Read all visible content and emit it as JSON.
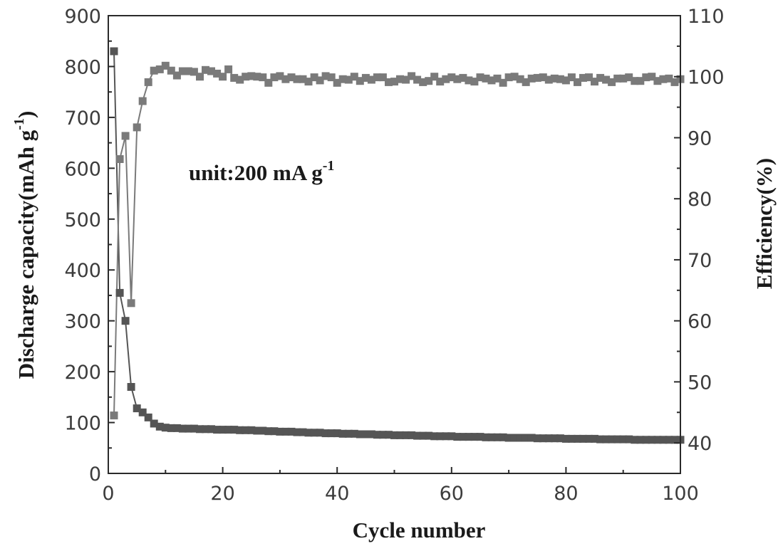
{
  "chart_data": {
    "type": "scatter",
    "annotation": {
      "text": "unit:200 mA g",
      "superscript": "-1"
    },
    "xlabel": "Cycle number",
    "ylabel_left": {
      "text": "Discharge capacity(mAh g",
      "superscript": "-1",
      "close": ")"
    },
    "ylabel_right": "Efficiency(%)",
    "xlim": [
      0,
      100
    ],
    "ylim_left": [
      0,
      900
    ],
    "ylim_right": [
      35,
      110
    ],
    "x_ticks": [
      0,
      20,
      40,
      60,
      80,
      100
    ],
    "y_left_ticks": [
      0,
      100,
      200,
      300,
      400,
      500,
      600,
      700,
      800,
      900
    ],
    "y_right_ticks": [
      40,
      50,
      60,
      70,
      80,
      90,
      100,
      110
    ],
    "grid": false,
    "colors": {
      "capacity": "#555555",
      "efficiency": "#7a7a7a",
      "axis": "#2a2a2a"
    },
    "series": [
      {
        "axis": "left",
        "marker": "square",
        "x": [
          1,
          2,
          3,
          4,
          5,
          6,
          7,
          8,
          9,
          10,
          11,
          12,
          13,
          14,
          15,
          16,
          17,
          18,
          19,
          20,
          21,
          22,
          23,
          24,
          25,
          26,
          27,
          28,
          29,
          30,
          31,
          32,
          33,
          34,
          35,
          36,
          37,
          38,
          39,
          40,
          41,
          42,
          43,
          44,
          45,
          46,
          47,
          48,
          49,
          50,
          51,
          52,
          53,
          54,
          55,
          56,
          57,
          58,
          59,
          60,
          61,
          62,
          63,
          64,
          65,
          66,
          67,
          68,
          69,
          70,
          71,
          72,
          73,
          74,
          75,
          76,
          77,
          78,
          79,
          80,
          81,
          82,
          83,
          84,
          85,
          86,
          87,
          88,
          89,
          90,
          91,
          92,
          93,
          94,
          95,
          96,
          97,
          98,
          99,
          100
        ],
        "values": [
          830,
          355,
          300,
          170,
          128,
          120,
          110,
          98,
          92,
          90,
          89,
          89,
          88,
          88,
          88,
          87,
          87,
          87,
          86,
          86,
          86,
          86,
          85,
          85,
          85,
          84,
          84,
          83,
          83,
          82,
          82,
          82,
          81,
          81,
          80,
          80,
          80,
          79,
          79,
          79,
          78,
          78,
          78,
          77,
          77,
          77,
          76,
          76,
          76,
          75,
          75,
          75,
          75,
          74,
          74,
          74,
          73,
          73,
          73,
          73,
          72,
          72,
          72,
          72,
          72,
          71,
          71,
          71,
          71,
          70,
          70,
          70,
          70,
          70,
          69,
          69,
          69,
          69,
          69,
          68,
          68,
          68,
          68,
          68,
          68,
          67,
          67,
          67,
          67,
          67,
          67,
          66,
          66,
          66,
          66,
          66,
          66,
          66,
          66,
          66
        ]
      },
      {
        "axis": "right",
        "marker": "square",
        "x": [
          1,
          2,
          3,
          4,
          5,
          6,
          7,
          8,
          9,
          10,
          11,
          12,
          13,
          14,
          15,
          16,
          17,
          18,
          19,
          20,
          21,
          22,
          23,
          24,
          25,
          26,
          27,
          28,
          29,
          30,
          31,
          32,
          33,
          34,
          35,
          36,
          37,
          38,
          39,
          40,
          41,
          42,
          43,
          44,
          45,
          46,
          47,
          48,
          49,
          50,
          51,
          52,
          53,
          54,
          55,
          56,
          57,
          58,
          59,
          60,
          61,
          62,
          63,
          64,
          65,
          66,
          67,
          68,
          69,
          70,
          71,
          72,
          73,
          74,
          75,
          76,
          77,
          78,
          79,
          80,
          81,
          82,
          83,
          84,
          85,
          86,
          87,
          88,
          89,
          90,
          91,
          92,
          93,
          94,
          95,
          96,
          97,
          98,
          99,
          100
        ],
        "values": [
          44.5,
          86.5,
          90.3,
          62.9,
          91.7,
          96.0,
          99.1,
          101.0,
          101.2,
          101.8,
          101.0,
          100.2,
          100.9,
          100.9,
          100.8,
          100.0,
          101.1,
          100.9,
          100.5,
          100.0,
          101.2,
          99.8,
          99.5,
          100.0,
          100.1,
          100.0,
          99.9,
          99.0,
          99.9,
          100.1,
          99.6,
          99.9,
          99.6,
          99.6,
          99.2,
          99.9,
          99.4,
          100.1,
          99.9,
          99.0,
          99.6,
          99.5,
          100.0,
          99.3,
          99.8,
          99.5,
          99.9,
          99.9,
          99.1,
          99.2,
          99.6,
          99.5,
          100.1,
          99.5,
          99.1,
          99.3,
          100.0,
          99.2,
          99.6,
          99.9,
          99.6,
          99.8,
          99.4,
          99.2,
          99.9,
          99.7,
          99.4,
          99.7,
          99.0,
          99.9,
          100.0,
          99.6,
          99.1,
          99.7,
          99.8,
          99.9,
          99.5,
          99.7,
          99.6,
          99.4,
          99.9,
          99.1,
          99.8,
          99.9,
          99.2,
          99.8,
          99.5,
          99.1,
          99.7,
          99.7,
          99.9,
          99.3,
          99.3,
          99.9,
          100.0,
          99.3,
          99.6,
          99.7,
          99.1,
          99.6
        ]
      }
    ]
  }
}
